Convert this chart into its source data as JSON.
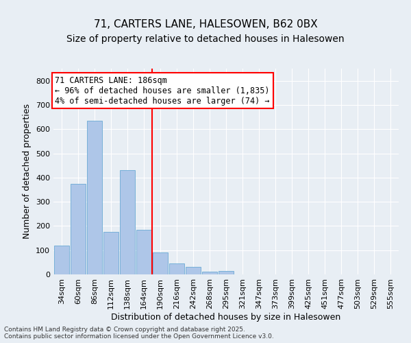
{
  "title_line1": "71, CARTERS LANE, HALESOWEN, B62 0BX",
  "title_line2": "Size of property relative to detached houses in Halesowen",
  "xlabel": "Distribution of detached houses by size in Halesowen",
  "ylabel": "Number of detached properties",
  "categories": [
    "34sqm",
    "60sqm",
    "86sqm",
    "112sqm",
    "138sqm",
    "164sqm",
    "190sqm",
    "216sqm",
    "242sqm",
    "268sqm",
    "295sqm",
    "321sqm",
    "347sqm",
    "373sqm",
    "399sqm",
    "425sqm",
    "451sqm",
    "477sqm",
    "503sqm",
    "529sqm",
    "555sqm"
  ],
  "bar_values": [
    120,
    375,
    635,
    175,
    430,
    185,
    90,
    45,
    30,
    10,
    15,
    0,
    0,
    0,
    0,
    0,
    0,
    0,
    0,
    0,
    0
  ],
  "bar_color": "#aec6e8",
  "bar_edge_color": "#6aaad4",
  "vline_x_index": 6,
  "vline_color": "red",
  "annotation_text": "71 CARTERS LANE: 186sqm\n← 96% of detached houses are smaller (1,835)\n4% of semi-detached houses are larger (74) →",
  "annotation_box_color": "white",
  "annotation_box_edge_color": "red",
  "ylim": [
    0,
    850
  ],
  "yticks": [
    0,
    100,
    200,
    300,
    400,
    500,
    600,
    700,
    800
  ],
  "background_color": "#e8eef4",
  "plot_background_color": "#e8eef4",
  "footer_text": "Contains HM Land Registry data © Crown copyright and database right 2025.\nContains public sector information licensed under the Open Government Licence v3.0.",
  "title_fontsize": 11,
  "subtitle_fontsize": 10,
  "axis_fontsize": 9,
  "tick_fontsize": 8,
  "annotation_fontsize": 8.5
}
